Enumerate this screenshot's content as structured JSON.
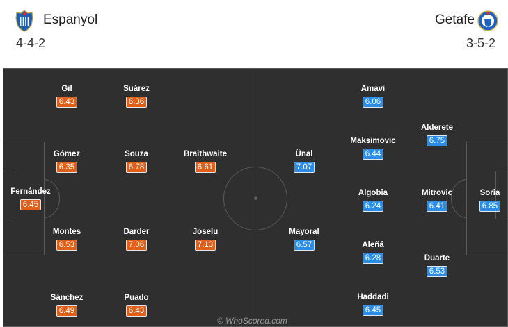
{
  "home": {
    "name": "Espanyol",
    "formation": "4-4-2",
    "color": "#e0601a",
    "crest_icon": "espanyol-crest-icon",
    "players": [
      {
        "name": "Fernández",
        "rating": "6.45"
      },
      {
        "name": "Gil",
        "rating": "6.43"
      },
      {
        "name": "Gómez",
        "rating": "6.35"
      },
      {
        "name": "Montes",
        "rating": "6.53"
      },
      {
        "name": "Sánchez",
        "rating": "6.49"
      },
      {
        "name": "Suárez",
        "rating": "6.36"
      },
      {
        "name": "Souza",
        "rating": "6.78"
      },
      {
        "name": "Darder",
        "rating": "7.06"
      },
      {
        "name": "Puado",
        "rating": "6.43"
      },
      {
        "name": "Braithwaite",
        "rating": "6.61"
      },
      {
        "name": "Joselu",
        "rating": "7.13"
      }
    ]
  },
  "away": {
    "name": "Getafe",
    "formation": "3-5-2",
    "color": "#2d8ce6",
    "crest_icon": "getafe-crest-icon",
    "players": [
      {
        "name": "Soria",
        "rating": "6.85"
      },
      {
        "name": "Alderete",
        "rating": "6.75"
      },
      {
        "name": "Mitrovic",
        "rating": "6.41"
      },
      {
        "name": "Duarte",
        "rating": "6.53"
      },
      {
        "name": "Amavi",
        "rating": "6.06"
      },
      {
        "name": "Maksimovic",
        "rating": "6.44"
      },
      {
        "name": "Algobia",
        "rating": "6.24"
      },
      {
        "name": "Aleñá",
        "rating": "6.28"
      },
      {
        "name": "Haddadi",
        "rating": "6.45"
      },
      {
        "name": "Ünal",
        "rating": "7.07"
      },
      {
        "name": "Mayoral",
        "rating": "6.57"
      }
    ]
  },
  "watermark": "© WhoScored.com"
}
